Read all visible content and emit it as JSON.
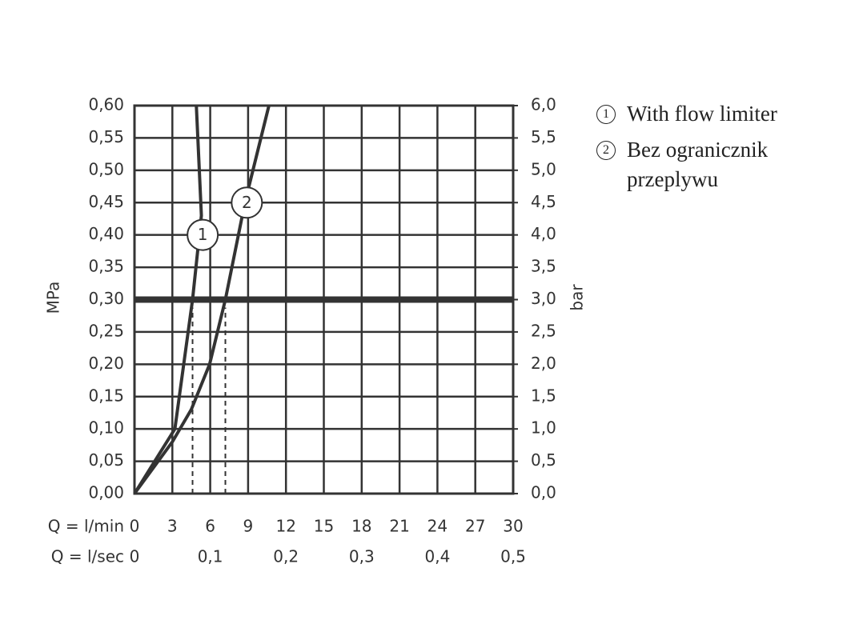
{
  "chart_data": {
    "type": "line",
    "y_label": "MPa",
    "y2_label": "bar",
    "x_label": "Q = l/min",
    "x2_label": "Q = l/sec",
    "xlim": [
      0,
      30
    ],
    "xticks": [
      0,
      3,
      6,
      9,
      12,
      15,
      18,
      21,
      24,
      27,
      30
    ],
    "x2lim": [
      0,
      0.5
    ],
    "x2ticks": [
      0,
      {
        "value": 0.1,
        "label": "0,1"
      },
      {
        "value": 0.2,
        "label": "0,2"
      },
      {
        "value": 0.3,
        "label": "0,3"
      },
      {
        "value": 0.4,
        "label": "0,4"
      },
      {
        "value": 0.5,
        "label": "0,5"
      }
    ],
    "ylim": [
      0,
      0.6
    ],
    "yticks": [
      {
        "value": 0,
        "label": "0,00"
      },
      {
        "value": 0.05,
        "label": "0,05"
      },
      {
        "value": 0.1,
        "label": "0,10"
      },
      {
        "value": 0.15,
        "label": "0,15"
      },
      {
        "value": 0.2,
        "label": "0,20"
      },
      {
        "value": 0.25,
        "label": "0,25"
      },
      {
        "value": 0.3,
        "label": "0,30"
      },
      {
        "value": 0.35,
        "label": "0,35"
      },
      {
        "value": 0.4,
        "label": "0,40"
      },
      {
        "value": 0.45,
        "label": "0,45"
      },
      {
        "value": 0.5,
        "label": "0,50"
      },
      {
        "value": 0.55,
        "label": "0,55"
      },
      {
        "value": 0.6,
        "label": "0,60"
      }
    ],
    "y2lim": [
      0,
      6
    ],
    "y2ticks": [
      {
        "value": 0,
        "label": "0,0"
      },
      {
        "value": 0.5,
        "label": "0,5"
      },
      {
        "value": 1,
        "label": "1,0"
      },
      {
        "value": 1.5,
        "label": "1,5"
      },
      {
        "value": 2,
        "label": "2,0"
      },
      {
        "value": 2.5,
        "label": "2,5"
      },
      {
        "value": 3,
        "label": "3,0"
      },
      {
        "value": 3.5,
        "label": "3,5"
      },
      {
        "value": 4,
        "label": "4,0"
      },
      {
        "value": 4.5,
        "label": "4,5"
      },
      {
        "value": 5,
        "label": "5,0"
      },
      {
        "value": 5.5,
        "label": "5,5"
      },
      {
        "value": 6,
        "label": "6,0"
      }
    ],
    "grid": true,
    "reference_pressure": 0.3,
    "reference_flows": [
      4.6,
      7.2
    ],
    "color": "#333333",
    "series": [
      {
        "name": "With flow limiter",
        "marker": "1",
        "label_at": {
          "x": 5.4,
          "y": 0.4
        },
        "x": [
          0,
          3.2,
          4.6,
          5.3,
          4.9
        ],
        "values": [
          0,
          0.1,
          0.3,
          0.43,
          0.6
        ]
      },
      {
        "name": "Bez ogranicznik przeplywu",
        "marker": "2",
        "label_at": {
          "x": 8.9,
          "y": 0.45
        },
        "x": [
          0,
          3,
          4.5,
          5.95,
          7.2,
          8.75,
          10.65
        ],
        "values": [
          0,
          0.08,
          0.13,
          0.2,
          0.3,
          0.45,
          0.6
        ]
      }
    ]
  }
}
